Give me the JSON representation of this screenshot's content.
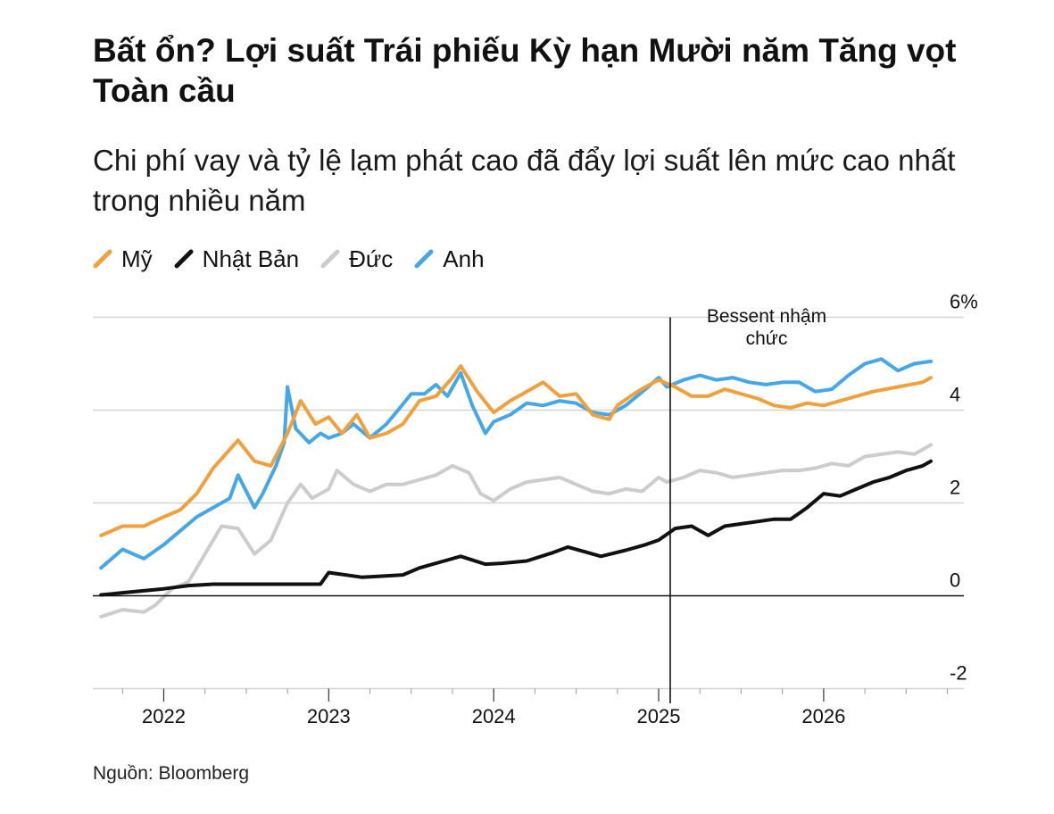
{
  "chart_data": {
    "type": "line",
    "title": "Bất ổn? Lợi suất Trái phiếu Kỳ hạn Mười năm Tăng vọt Toàn cầu",
    "subtitle": "Chi phí vay và tỷ lệ lạm phát cao đã đẩy lợi suất lên mức cao nhất trong nhiều năm",
    "source": "Nguồn: Bloomberg",
    "x_tick_labels": [
      "2022",
      "2023",
      "2024",
      "2025",
      "2026"
    ],
    "x_ticks": [
      2022,
      2023,
      2024,
      2025,
      2026
    ],
    "xlim": [
      2021.57,
      2026.85
    ],
    "y_tick_labels": [
      "6%",
      "4",
      "2",
      "0",
      "-2"
    ],
    "y_ticks": [
      6,
      4,
      2,
      0,
      -2
    ],
    "ylim": [
      -2,
      6
    ],
    "grid": true,
    "legend_position": "top-left",
    "annotation": {
      "x": 2025.07,
      "lines": [
        "Bessent nhậm",
        "chức"
      ]
    },
    "series": [
      {
        "name": "Mỹ",
        "color": "#f0a03c",
        "points": [
          [
            2021.62,
            1.3
          ],
          [
            2021.75,
            1.5
          ],
          [
            2021.88,
            1.5
          ],
          [
            2022.0,
            1.7
          ],
          [
            2022.1,
            1.85
          ],
          [
            2022.2,
            2.2
          ],
          [
            2022.3,
            2.75
          ],
          [
            2022.45,
            3.35
          ],
          [
            2022.55,
            2.9
          ],
          [
            2022.65,
            2.8
          ],
          [
            2022.75,
            3.5
          ],
          [
            2022.83,
            4.2
          ],
          [
            2022.92,
            3.7
          ],
          [
            2023.0,
            3.85
          ],
          [
            2023.08,
            3.5
          ],
          [
            2023.17,
            3.9
          ],
          [
            2023.25,
            3.4
          ],
          [
            2023.35,
            3.5
          ],
          [
            2023.45,
            3.7
          ],
          [
            2023.55,
            4.2
          ],
          [
            2023.65,
            4.3
          ],
          [
            2023.75,
            4.7
          ],
          [
            2023.8,
            4.95
          ],
          [
            2023.9,
            4.4
          ],
          [
            2024.0,
            3.95
          ],
          [
            2024.1,
            4.2
          ],
          [
            2024.2,
            4.4
          ],
          [
            2024.3,
            4.6
          ],
          [
            2024.4,
            4.3
          ],
          [
            2024.5,
            4.35
          ],
          [
            2024.6,
            3.9
          ],
          [
            2024.7,
            3.8
          ],
          [
            2024.75,
            4.1
          ],
          [
            2024.85,
            4.35
          ],
          [
            2024.92,
            4.5
          ],
          [
            2025.0,
            4.65
          ],
          [
            2025.1,
            4.5
          ],
          [
            2025.2,
            4.3
          ],
          [
            2025.3,
            4.3
          ],
          [
            2025.4,
            4.45
          ],
          [
            2025.5,
            4.35
          ],
          [
            2025.6,
            4.25
          ],
          [
            2025.7,
            4.1
          ],
          [
            2025.8,
            4.05
          ],
          [
            2025.9,
            4.15
          ],
          [
            2026.0,
            4.1
          ],
          [
            2026.15,
            4.25
          ],
          [
            2026.3,
            4.4
          ],
          [
            2026.45,
            4.5
          ],
          [
            2026.6,
            4.6
          ],
          [
            2026.65,
            4.7
          ]
        ]
      },
      {
        "name": "Nhật Bản",
        "color": "#111111",
        "points": [
          [
            2021.62,
            0.02
          ],
          [
            2021.8,
            0.08
          ],
          [
            2022.0,
            0.15
          ],
          [
            2022.15,
            0.22
          ],
          [
            2022.3,
            0.25
          ],
          [
            2022.5,
            0.25
          ],
          [
            2022.7,
            0.25
          ],
          [
            2022.95,
            0.25
          ],
          [
            2023.0,
            0.5
          ],
          [
            2023.2,
            0.4
          ],
          [
            2023.3,
            0.42
          ],
          [
            2023.45,
            0.45
          ],
          [
            2023.55,
            0.6
          ],
          [
            2023.7,
            0.75
          ],
          [
            2023.8,
            0.85
          ],
          [
            2023.95,
            0.68
          ],
          [
            2024.05,
            0.7
          ],
          [
            2024.2,
            0.75
          ],
          [
            2024.35,
            0.92
          ],
          [
            2024.45,
            1.05
          ],
          [
            2024.55,
            0.95
          ],
          [
            2024.65,
            0.85
          ],
          [
            2024.8,
            0.98
          ],
          [
            2024.92,
            1.1
          ],
          [
            2025.0,
            1.2
          ],
          [
            2025.1,
            1.45
          ],
          [
            2025.2,
            1.5
          ],
          [
            2025.3,
            1.3
          ],
          [
            2025.4,
            1.5
          ],
          [
            2025.5,
            1.55
          ],
          [
            2025.6,
            1.6
          ],
          [
            2025.7,
            1.65
          ],
          [
            2025.8,
            1.65
          ],
          [
            2025.9,
            1.9
          ],
          [
            2026.0,
            2.2
          ],
          [
            2026.1,
            2.15
          ],
          [
            2026.2,
            2.3
          ],
          [
            2026.3,
            2.45
          ],
          [
            2026.4,
            2.55
          ],
          [
            2026.5,
            2.7
          ],
          [
            2026.6,
            2.8
          ],
          [
            2026.65,
            2.9
          ]
        ]
      },
      {
        "name": "Đức",
        "color": "#cccccc",
        "points": [
          [
            2021.62,
            -0.45
          ],
          [
            2021.75,
            -0.3
          ],
          [
            2021.88,
            -0.35
          ],
          [
            2021.95,
            -0.2
          ],
          [
            2022.05,
            0.15
          ],
          [
            2022.15,
            0.3
          ],
          [
            2022.25,
            0.9
          ],
          [
            2022.35,
            1.5
          ],
          [
            2022.45,
            1.45
          ],
          [
            2022.55,
            0.9
          ],
          [
            2022.65,
            1.2
          ],
          [
            2022.75,
            2.0
          ],
          [
            2022.83,
            2.4
          ],
          [
            2022.9,
            2.1
          ],
          [
            2023.0,
            2.3
          ],
          [
            2023.05,
            2.7
          ],
          [
            2023.15,
            2.4
          ],
          [
            2023.25,
            2.25
          ],
          [
            2023.35,
            2.4
          ],
          [
            2023.45,
            2.4
          ],
          [
            2023.55,
            2.5
          ],
          [
            2023.65,
            2.6
          ],
          [
            2023.75,
            2.8
          ],
          [
            2023.85,
            2.65
          ],
          [
            2023.92,
            2.2
          ],
          [
            2024.0,
            2.05
          ],
          [
            2024.1,
            2.3
          ],
          [
            2024.2,
            2.45
          ],
          [
            2024.3,
            2.5
          ],
          [
            2024.4,
            2.55
          ],
          [
            2024.5,
            2.4
          ],
          [
            2024.6,
            2.25
          ],
          [
            2024.7,
            2.2
          ],
          [
            2024.8,
            2.3
          ],
          [
            2024.9,
            2.25
          ],
          [
            2025.0,
            2.55
          ],
          [
            2025.05,
            2.45
          ],
          [
            2025.15,
            2.55
          ],
          [
            2025.25,
            2.7
          ],
          [
            2025.35,
            2.65
          ],
          [
            2025.45,
            2.55
          ],
          [
            2025.55,
            2.6
          ],
          [
            2025.65,
            2.65
          ],
          [
            2025.75,
            2.7
          ],
          [
            2025.85,
            2.7
          ],
          [
            2025.95,
            2.75
          ],
          [
            2026.05,
            2.85
          ],
          [
            2026.15,
            2.8
          ],
          [
            2026.25,
            3.0
          ],
          [
            2026.35,
            3.05
          ],
          [
            2026.45,
            3.1
          ],
          [
            2026.55,
            3.05
          ],
          [
            2026.65,
            3.25
          ]
        ]
      },
      {
        "name": "Anh",
        "color": "#46a7e6",
        "points": [
          [
            2021.62,
            0.6
          ],
          [
            2021.75,
            1.0
          ],
          [
            2021.88,
            0.8
          ],
          [
            2022.0,
            1.1
          ],
          [
            2022.1,
            1.4
          ],
          [
            2022.2,
            1.7
          ],
          [
            2022.3,
            1.9
          ],
          [
            2022.4,
            2.1
          ],
          [
            2022.45,
            2.6
          ],
          [
            2022.55,
            1.9
          ],
          [
            2022.6,
            2.2
          ],
          [
            2022.68,
            2.8
          ],
          [
            2022.73,
            3.3
          ],
          [
            2022.75,
            4.5
          ],
          [
            2022.8,
            3.6
          ],
          [
            2022.88,
            3.3
          ],
          [
            2022.95,
            3.5
          ],
          [
            2023.0,
            3.4
          ],
          [
            2023.08,
            3.5
          ],
          [
            2023.15,
            3.7
          ],
          [
            2023.25,
            3.4
          ],
          [
            2023.35,
            3.7
          ],
          [
            2023.42,
            4.0
          ],
          [
            2023.5,
            4.35
          ],
          [
            2023.58,
            4.35
          ],
          [
            2023.65,
            4.55
          ],
          [
            2023.72,
            4.3
          ],
          [
            2023.8,
            4.8
          ],
          [
            2023.87,
            4.1
          ],
          [
            2023.95,
            3.5
          ],
          [
            2024.0,
            3.75
          ],
          [
            2024.1,
            3.9
          ],
          [
            2024.2,
            4.15
          ],
          [
            2024.3,
            4.1
          ],
          [
            2024.4,
            4.2
          ],
          [
            2024.5,
            4.15
          ],
          [
            2024.6,
            3.95
          ],
          [
            2024.7,
            3.9
          ],
          [
            2024.8,
            4.1
          ],
          [
            2024.92,
            4.45
          ],
          [
            2025.0,
            4.7
          ],
          [
            2025.05,
            4.5
          ],
          [
            2025.15,
            4.65
          ],
          [
            2025.25,
            4.75
          ],
          [
            2025.35,
            4.65
          ],
          [
            2025.45,
            4.7
          ],
          [
            2025.55,
            4.6
          ],
          [
            2025.65,
            4.55
          ],
          [
            2025.75,
            4.6
          ],
          [
            2025.85,
            4.6
          ],
          [
            2025.95,
            4.4
          ],
          [
            2026.05,
            4.45
          ],
          [
            2026.15,
            4.75
          ],
          [
            2026.25,
            5.0
          ],
          [
            2026.35,
            5.1
          ],
          [
            2026.45,
            4.85
          ],
          [
            2026.55,
            5.0
          ],
          [
            2026.65,
            5.05
          ]
        ]
      }
    ]
  }
}
